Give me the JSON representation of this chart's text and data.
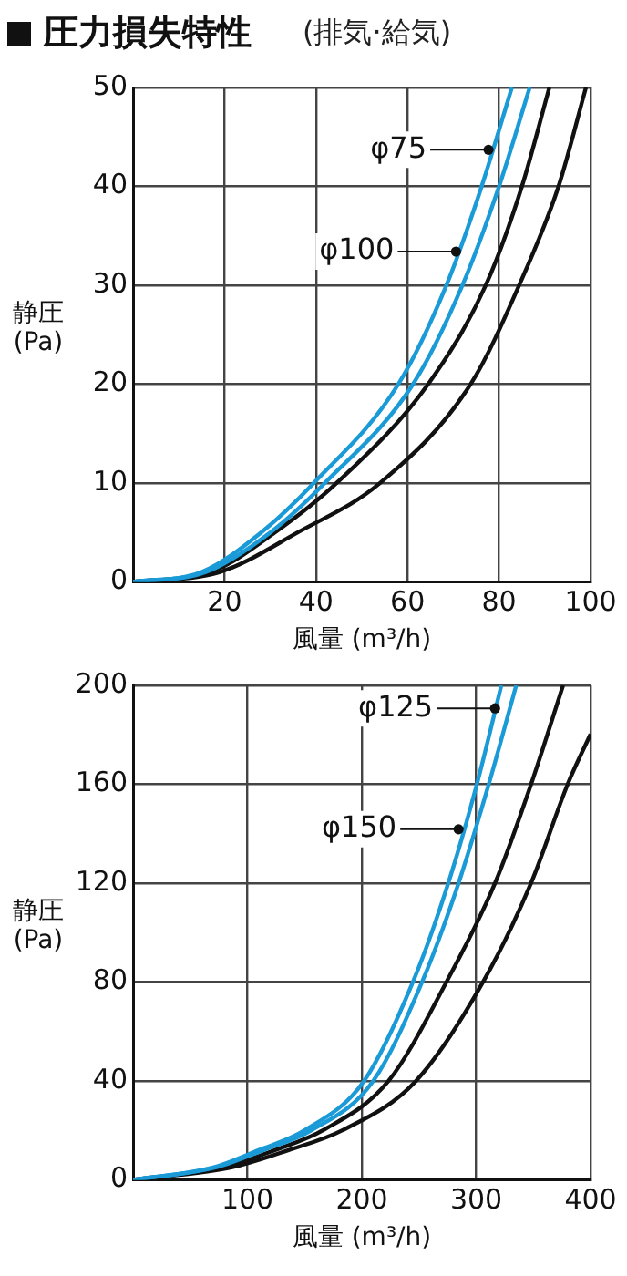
{
  "chart_data": [
    {
      "type": "line",
      "title": "圧力損失特性",
      "subtitle": "(排気·給気)",
      "xlabel": "風量 (m³/h)",
      "ylabel": "静圧(Pa)",
      "xlim": [
        0,
        100
      ],
      "ylim": [
        0,
        50
      ],
      "xticks": [
        {
          "value": 0,
          "label": null
        },
        20,
        40,
        60,
        80,
        100
      ],
      "yticks": [
        0,
        10,
        20,
        30,
        40,
        50
      ],
      "grid": true,
      "legend": false,
      "marker": "none",
      "line_style": "solid",
      "series": [
        {
          "color": "#1a9ad6",
          "x": [
            0,
            15,
            28,
            39.5,
            58,
            68.5,
            76.2,
            82.8
          ],
          "values": [
            0,
            1,
            5,
            10,
            20,
            30,
            40,
            50
          ]
        },
        {
          "color": "#1a9ad6",
          "x": [
            0,
            16,
            30,
            41.9,
            61.2,
            72,
            80,
            86.7
          ],
          "values": [
            0,
            1,
            5,
            10,
            20,
            30,
            40,
            50
          ]
        },
        {
          "color": "#111111",
          "x": [
            0,
            17,
            31,
            44.5,
            64.5,
            77.1,
            85,
            91
          ],
          "values": [
            0,
            1,
            5,
            10,
            20,
            30,
            40,
            50
          ]
        },
        {
          "color": "#111111",
          "x": [
            0,
            19,
            36,
            54,
            73.8,
            84.4,
            93,
            99
          ],
          "values": [
            0,
            1,
            5,
            10,
            20,
            30,
            40,
            50
          ]
        }
      ],
      "annotations": [
        {
          "text": "φ75",
          "x": 77.7,
          "y": 43.7
        },
        {
          "text": "φ100",
          "x": 70.6,
          "y": 33.4
        }
      ]
    },
    {
      "type": "line",
      "xlabel": "風量 (m³/h)",
      "ylabel": "静圧(Pa)",
      "xlim": [
        0,
        400
      ],
      "ylim": [
        0,
        200
      ],
      "xticks": [
        {
          "value": 0,
          "label": null
        },
        100,
        200,
        300,
        400
      ],
      "yticks": [
        0,
        40,
        80,
        120,
        160,
        200
      ],
      "grid": true,
      "legend": false,
      "marker": "none",
      "line_style": "solid",
      "series": [
        {
          "color": "#1a9ad6",
          "x": [
            0,
            70,
            110,
            150,
            202,
            244.7,
            275.6,
            300.6,
            322
          ],
          "values": [
            0,
            5,
            12,
            20,
            40,
            80,
            120,
            160,
            200
          ]
        },
        {
          "color": "#1a9ad6",
          "x": [
            0,
            72,
            114,
            156,
            210,
            252.7,
            284.6,
            311,
            335
          ],
          "values": [
            0,
            5,
            12,
            20,
            40,
            80,
            120,
            160,
            200
          ]
        },
        {
          "color": "#111111",
          "x": [
            0,
            78,
            124,
            166,
            223.4,
            274,
            316.5,
            348,
            376
          ],
          "values": [
            0,
            5,
            12,
            20,
            40,
            80,
            120,
            160,
            200
          ]
        },
        {
          "color": "#111111",
          "x": [
            0,
            86,
            136,
            183,
            247.4,
            306,
            348,
            380,
            400
          ],
          "values": [
            0,
            5,
            12,
            20,
            40,
            80,
            120,
            160,
            180.3
          ]
        }
      ],
      "annotations": [
        {
          "text": "φ125",
          "x": 316.5,
          "y": 190.7
        },
        {
          "text": "φ150",
          "x": 284.6,
          "y": 141.8
        }
      ]
    }
  ]
}
